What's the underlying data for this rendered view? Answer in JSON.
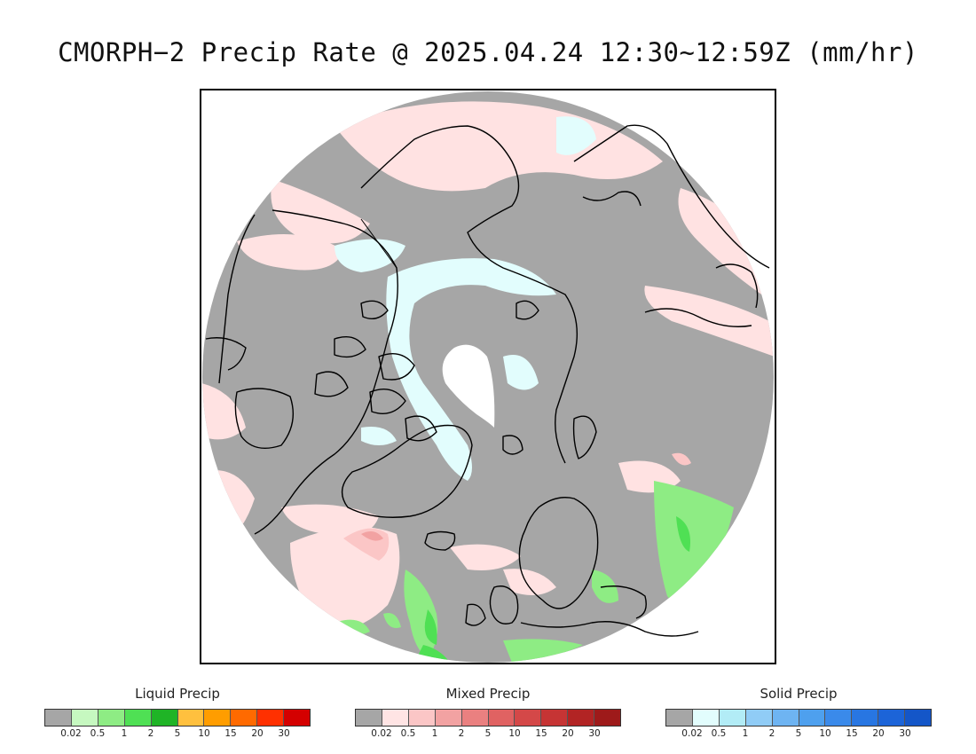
{
  "title": "CMORPH−2 Precip Rate @ 2025.04.24 12:30~12:59Z (mm/hr)",
  "map": {
    "projection": "north-polar-stereographic",
    "background_color": "#a6a6a6",
    "pole_gap_color": "#ffffff",
    "coastline_color": "#000000"
  },
  "legends": [
    {
      "id": "liquid",
      "title": "Liquid Precip",
      "colors": [
        "#a6a6a6",
        "#c6f8c0",
        "#8eec84",
        "#4fe054",
        "#1fb426",
        "#ffc03e",
        "#ff9d00",
        "#ff6a00",
        "#ff3000",
        "#d40000"
      ],
      "ticks": [
        "0.02",
        "0.5",
        "1",
        "2",
        "5",
        "10",
        "15",
        "20",
        "30"
      ]
    },
    {
      "id": "mixed",
      "title": "Mixed Precip",
      "colors": [
        "#a6a6a6",
        "#ffe4e4",
        "#fbc6c6",
        "#f2a2a2",
        "#ea8080",
        "#e06262",
        "#d44848",
        "#c63434",
        "#b22424",
        "#9e1a1a"
      ],
      "ticks": [
        "0.02",
        "0.5",
        "1",
        "2",
        "5",
        "10",
        "15",
        "20",
        "30"
      ]
    },
    {
      "id": "solid",
      "title": "Solid Precip",
      "colors": [
        "#a6a6a6",
        "#e2fdfd",
        "#b2ecf6",
        "#90ccf6",
        "#6eb4f2",
        "#4ea0ee",
        "#3a8aea",
        "#2876e2",
        "#1c64d8",
        "#1456c8"
      ],
      "ticks": [
        "0.02",
        "0.5",
        "1",
        "2",
        "5",
        "10",
        "15",
        "20",
        "30"
      ]
    }
  ]
}
